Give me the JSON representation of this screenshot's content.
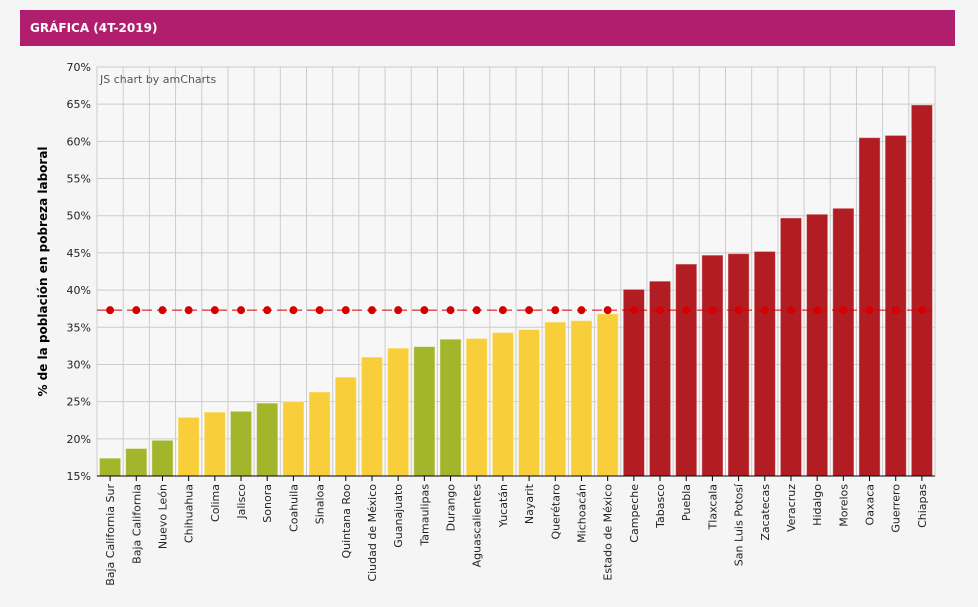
{
  "header": {
    "title": "GRÁFICA (4T-2019)"
  },
  "credit": "JS chart by amCharts",
  "colors": {
    "green": "#a2b52b",
    "yellow": "#f8cf3a",
    "red": "#b21d24",
    "reference": "#d40000",
    "header": "#b01f6e"
  },
  "chart_data": {
    "type": "bar",
    "title": "",
    "xlabel": "",
    "ylabel": "% de la población en pobreza laboral",
    "ylim": [
      15,
      70
    ],
    "yticks": [
      15,
      20,
      25,
      30,
      35,
      40,
      45,
      50,
      55,
      60,
      65,
      70
    ],
    "ytick_suffix": "%",
    "grid": true,
    "categories": [
      "Baja California Sur",
      "Baja California",
      "Nuevo León",
      "Chihuahua",
      "Colima",
      "Jalisco",
      "Sonora",
      "Coahuila",
      "Sinaloa",
      "Quintana Roo",
      "Ciudad de México",
      "Guanajuato",
      "Tamaulipas",
      "Durango",
      "Aguascalientes",
      "Yucatán",
      "Nayarit",
      "Querétaro",
      "Michoacán",
      "Estado de México",
      "Campeche",
      "Tabasco",
      "Puebla",
      "Tlaxcala",
      "San Luis Potosí",
      "Zacatecas",
      "Veracruz",
      "Hidalgo",
      "Morelos",
      "Oaxaca",
      "Guerrero",
      "Chiapas"
    ],
    "values": [
      17.4,
      18.7,
      19.8,
      22.9,
      23.6,
      23.7,
      24.8,
      25.0,
      26.3,
      28.3,
      31.0,
      32.2,
      32.4,
      33.4,
      33.5,
      34.3,
      34.7,
      35.7,
      35.9,
      36.8,
      40.1,
      41.2,
      43.5,
      44.7,
      44.9,
      45.2,
      49.7,
      50.2,
      51.0,
      60.5,
      60.8,
      64.9
    ],
    "bar_colors": [
      "green",
      "green",
      "green",
      "yellow",
      "yellow",
      "green",
      "green",
      "yellow",
      "yellow",
      "yellow",
      "yellow",
      "yellow",
      "green",
      "green",
      "yellow",
      "yellow",
      "yellow",
      "yellow",
      "yellow",
      "yellow",
      "red",
      "red",
      "red",
      "red",
      "red",
      "red",
      "red",
      "red",
      "red",
      "red",
      "red",
      "red"
    ],
    "reference_line": {
      "value": 37.3,
      "style": "dashed with dots"
    }
  }
}
